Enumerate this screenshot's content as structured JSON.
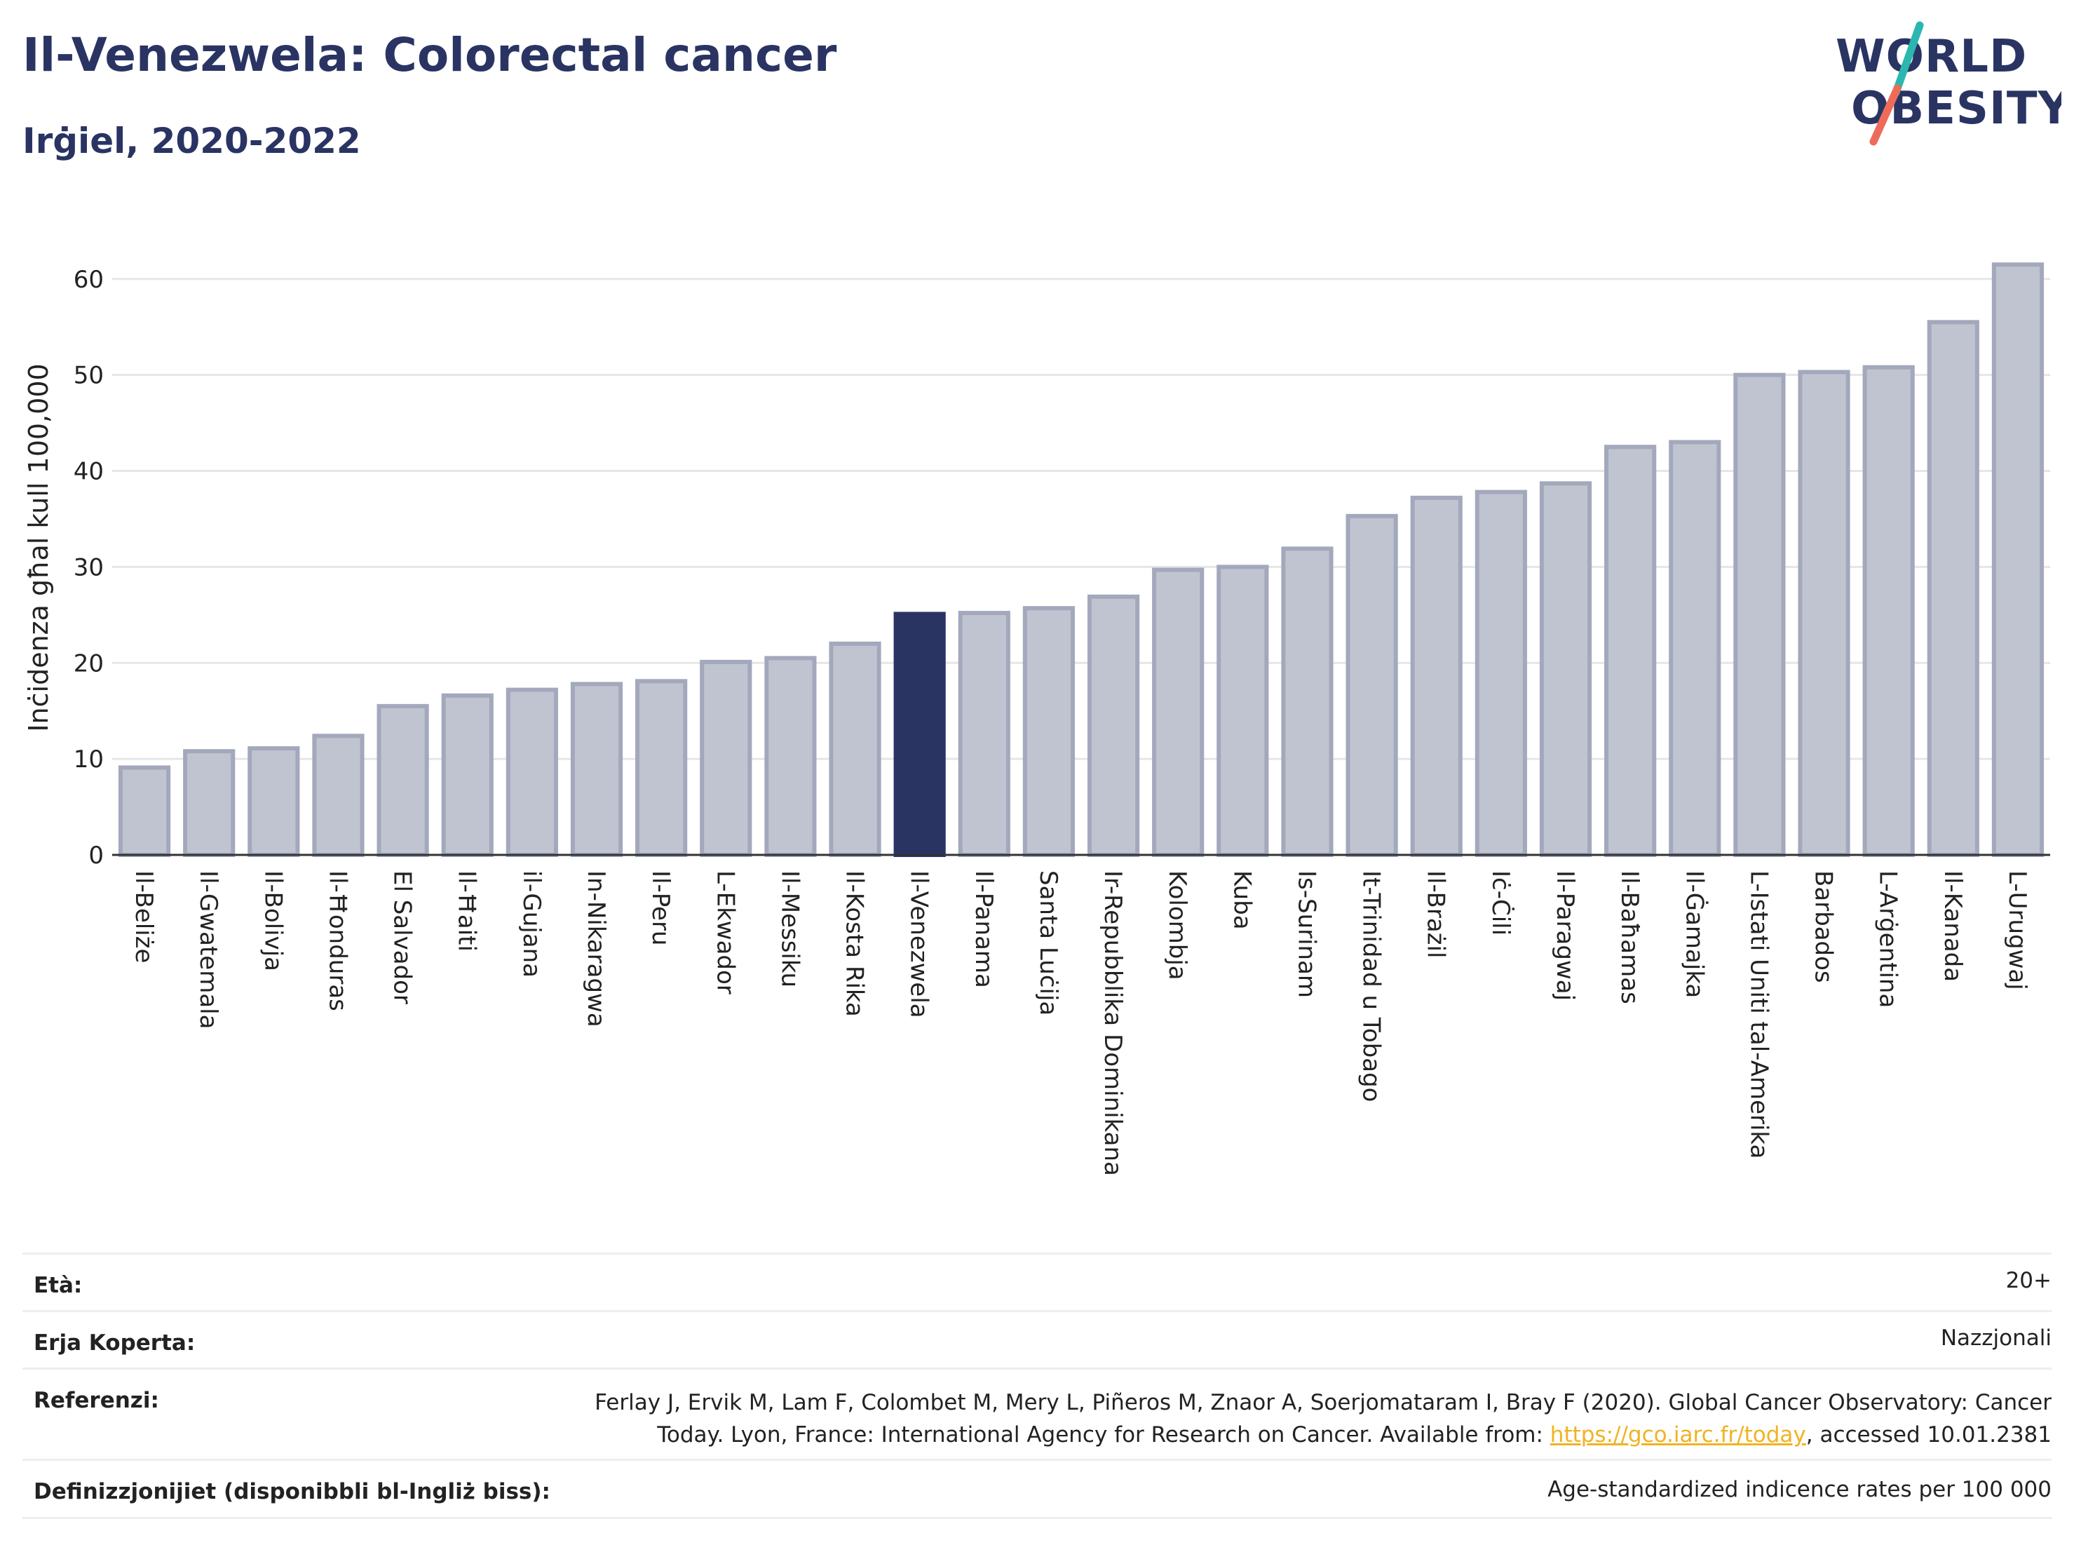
{
  "header": {
    "title": "Il-Venezwela: Colorectal cancer",
    "subtitle": "Irġiel, 2020-2022"
  },
  "logo": {
    "line1": "WORLD",
    "line2": "OBESITY",
    "colors": {
      "text": "#2a3463",
      "slash_teal": "#2bb7b0",
      "slash_coral": "#ee6b5a"
    }
  },
  "chart_data": {
    "type": "bar",
    "ylabel": "Inċidenza għal kull 100,000",
    "ylim": [
      0,
      64
    ],
    "yticks": [
      0,
      10,
      20,
      30,
      40,
      50,
      60
    ],
    "grid": true,
    "highlight_category": "Il-Venezwela",
    "colors": {
      "bar": "#c0c4d0",
      "bar_edge": "#a3a8bc",
      "highlight": "#2a3463",
      "axis": "#333333",
      "grid": "#e6e6e6"
    },
    "categories": [
      "Il-Beliże",
      "Il-Gwatemala",
      "Il-Bolivja",
      "Il-Ħonduras",
      "El Salvador",
      "Il-Ħaiti",
      "il-Gujana",
      "In-Nikaragwa",
      "Il-Peru",
      "L-Ekwador",
      "Il-Messiku",
      "Il-Kosta Rika",
      "Il-Venezwela",
      "Il-Panama",
      "Santa Luċija",
      "Ir-Repubblika Dominikana",
      "Kolombja",
      "Kuba",
      "Is-Surinam",
      "It-Trinidad u Tobago",
      "Il-Brażil",
      "Iċ-Ċili",
      "Il-Paragwaj",
      "Il-Baħamas",
      "Il-Ġamajka",
      "L-Istati Uniti tal-Amerika",
      "Barbados",
      "L-Arġentina",
      "Il-Kanada",
      "L-Urugwaj"
    ],
    "values": [
      9.1,
      10.8,
      11.1,
      12.4,
      15.5,
      16.6,
      17.2,
      17.8,
      18.1,
      20.1,
      20.5,
      22.0,
      25.1,
      25.2,
      25.7,
      26.9,
      29.7,
      30.0,
      31.9,
      35.3,
      37.2,
      37.8,
      38.7,
      42.5,
      43.0,
      50.0,
      50.3,
      50.8,
      55.5,
      61.5
    ]
  },
  "meta": {
    "age": {
      "label": "Età:",
      "value": "20+"
    },
    "coverage": {
      "label": "Erja Koperta:",
      "value": "Nazzjonali"
    },
    "references": {
      "label": "Referenzi:",
      "line1": "Ferlay J, Ervik M, Lam F, Colombet M, Mery L, Piñeros M, Znaor A, Soerjomataram I, Bray F (2020). Global Cancer Observatory: Cancer",
      "line2_pre": "Today. Lyon, France: International Agency for Research on Cancer. Available from: ",
      "link": "https://gco.iarc.fr/today",
      "line2_post": ", accessed 10.01.2381"
    },
    "definitions": {
      "label": "Definizzjonijiet (disponibbli bl-Ingliż biss):",
      "value": "Age-standardized indicence rates per 100 000"
    }
  }
}
